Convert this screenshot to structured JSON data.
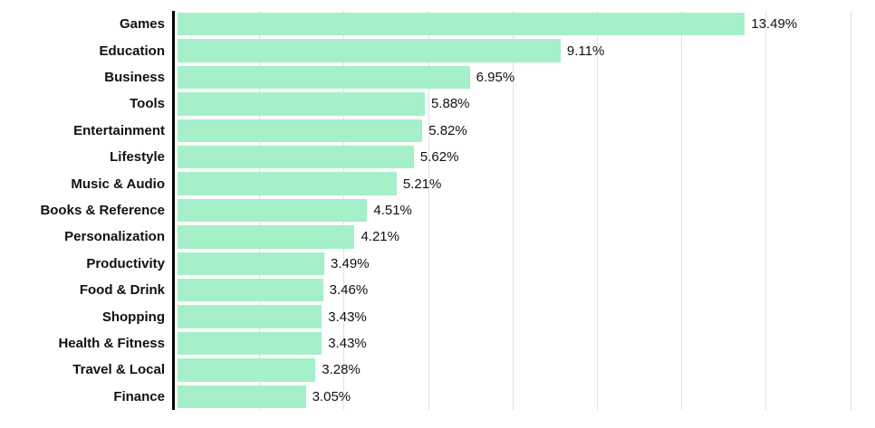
{
  "chart_data": {
    "type": "bar",
    "orientation": "horizontal",
    "title": "",
    "xlabel": "",
    "ylabel": "",
    "categories": [
      "Games",
      "Education",
      "Business",
      "Tools",
      "Entertainment",
      "Lifestyle",
      "Music & Audio",
      "Books & Reference",
      "Personalization",
      "Productivity",
      "Food & Drink",
      "Shopping",
      "Health & Fitness",
      "Travel & Local",
      "Finance"
    ],
    "values": [
      13.49,
      9.11,
      6.95,
      5.88,
      5.82,
      5.62,
      5.21,
      4.51,
      4.21,
      3.49,
      3.46,
      3.43,
      3.43,
      3.28,
      3.05
    ],
    "value_labels": [
      "13.49%",
      "9.11%",
      "6.95%",
      "5.88%",
      "5.82%",
      "5.62%",
      "5.21%",
      "4.51%",
      "4.21%",
      "3.49%",
      "3.46%",
      "3.43%",
      "3.43%",
      "3.28%",
      "3.05%"
    ],
    "xlim": [
      0,
      16.5
    ],
    "gridline_interval": 2,
    "grid": true,
    "legend": false,
    "bar_color": "#a5efc9",
    "gridline_color": "#e0e0e0",
    "axis_color": "#000000",
    "label_color": "#111111"
  }
}
